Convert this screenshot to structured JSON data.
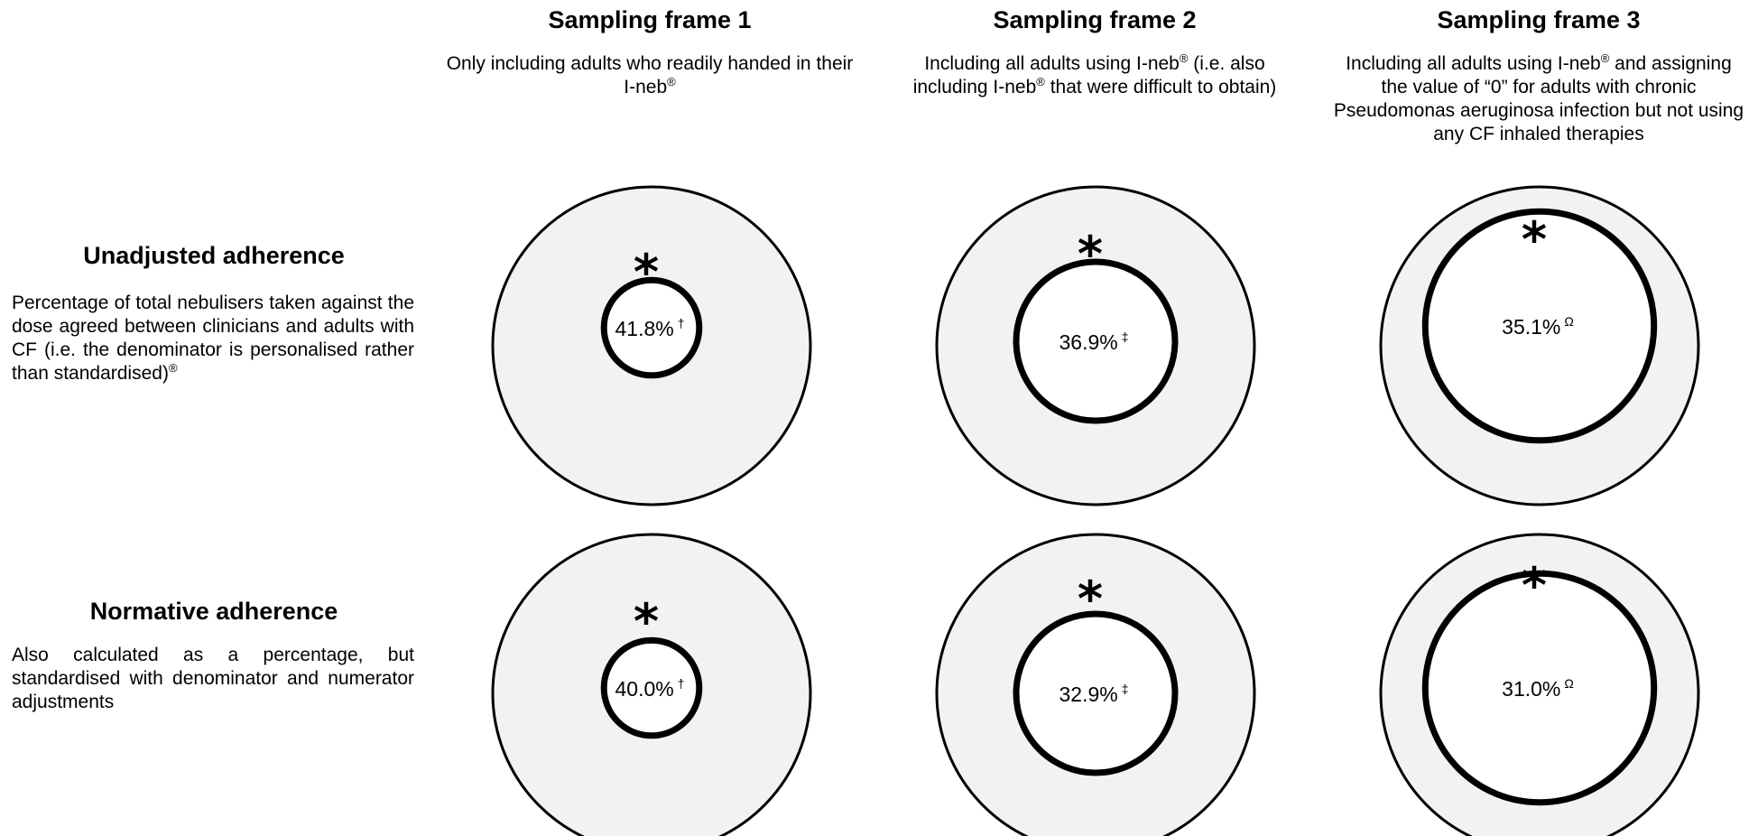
{
  "columns": [
    {
      "title": "Sampling frame 1",
      "desc_html": "Only including adults who readily handed in their I-neb<sup>®</sup>"
    },
    {
      "title": "Sampling frame 2",
      "desc_html": "Including all adults using I-neb<sup>®</sup> (i.e. also including I-neb<sup>®</sup> that were difficult to obtain)"
    },
    {
      "title": "Sampling frame 3",
      "desc_html": "Including all adults using I-neb<sup>®</sup> and assigning the value of “0” for adults with chronic Pseudomonas aeruginosa infection but not using any CF inhaled therapies"
    }
  ],
  "rows": [
    {
      "title": "Unadjusted adherence",
      "desc_html": "Percentage of total nebulisers taken against the dose agreed between clinicians and adults with CF (i.e. the denominator is personalised rather than standardised)<sup>®</sup>"
    },
    {
      "title": "Normative adherence",
      "desc_html": "Also calculated as a percentage, but standardised with denominator and numerator adjustments"
    }
  ],
  "cells": [
    [
      {
        "value": "41.8%",
        "mark": "†",
        "star": "*",
        "inner_fraction": 0.3
      },
      {
        "value": "36.9%",
        "mark": "‡",
        "star": "*",
        "inner_fraction": 0.5
      },
      {
        "value": "35.1%",
        "mark": "Ω",
        "star": "*",
        "inner_fraction": 0.72
      }
    ],
    [
      {
        "value": "40.0%",
        "mark": "†",
        "star": "*",
        "inner_fraction": 0.3
      },
      {
        "value": "32.9%",
        "mark": "‡",
        "star": "*",
        "inner_fraction": 0.5
      },
      {
        "value": "31.0%",
        "mark": "Ω",
        "star": "*",
        "inner_fraction": 0.72
      }
    ]
  ],
  "colors": {
    "outer_fill": "#f2f2f2",
    "inner_fill": "#ffffff",
    "stroke": "#000000"
  }
}
